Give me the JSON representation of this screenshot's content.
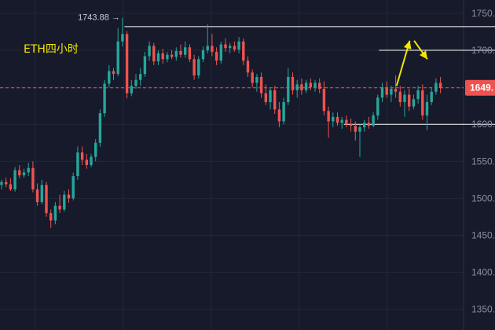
{
  "chart_data": {
    "type": "candlestick",
    "title": "ETH四小时",
    "y_ticks": [
      "1750.00",
      "1700.00",
      "1650.00",
      "1600.00",
      "1550.00",
      "1500.00",
      "1450.00",
      "1400.00",
      "1350.00"
    ],
    "ylim": [
      1322,
      1768
    ],
    "grid": true,
    "last_price": 1649.35,
    "last_price_label": "1649.",
    "high_marker": {
      "value": 1743.88,
      "label": "1743.88 →"
    },
    "levels": [
      {
        "value": 1732,
        "from": 28,
        "to": 1000
      },
      {
        "value": 1700,
        "from": 86,
        "to": 1000
      },
      {
        "value": 1600,
        "from": 78,
        "to": 1000
      }
    ],
    "arrows": [
      {
        "from": [
          90,
          1652
        ],
        "to": [
          93,
          1713
        ]
      },
      {
        "from": [
          94,
          1713
        ],
        "to": [
          97,
          1688
        ]
      }
    ],
    "colors": {
      "up": "#26a69a",
      "down": "#ef5350",
      "background": "#161a2b",
      "grid": "#232838",
      "title": "#f5e600",
      "arrow": "#f5e600",
      "level": "#ffffff",
      "tag": "#ef5350"
    },
    "candles": [
      {
        "o": 1518,
        "h": 1525,
        "l": 1512,
        "c": 1522
      },
      {
        "o": 1522,
        "h": 1528,
        "l": 1515,
        "c": 1519
      },
      {
        "o": 1519,
        "h": 1527,
        "l": 1510,
        "c": 1512
      },
      {
        "o": 1512,
        "h": 1542,
        "l": 1509,
        "c": 1538
      },
      {
        "o": 1538,
        "h": 1545,
        "l": 1527,
        "c": 1531
      },
      {
        "o": 1531,
        "h": 1540,
        "l": 1528,
        "c": 1535
      },
      {
        "o": 1535,
        "h": 1548,
        "l": 1530,
        "c": 1541
      },
      {
        "o": 1541,
        "h": 1550,
        "l": 1508,
        "c": 1512
      },
      {
        "o": 1512,
        "h": 1520,
        "l": 1490,
        "c": 1495
      },
      {
        "o": 1495,
        "h": 1525,
        "l": 1492,
        "c": 1518
      },
      {
        "o": 1518,
        "h": 1522,
        "l": 1475,
        "c": 1480
      },
      {
        "o": 1480,
        "h": 1485,
        "l": 1460,
        "c": 1470
      },
      {
        "o": 1470,
        "h": 1495,
        "l": 1465,
        "c": 1490
      },
      {
        "o": 1490,
        "h": 1505,
        "l": 1480,
        "c": 1485
      },
      {
        "o": 1485,
        "h": 1510,
        "l": 1482,
        "c": 1505
      },
      {
        "o": 1505,
        "h": 1512,
        "l": 1494,
        "c": 1500
      },
      {
        "o": 1500,
        "h": 1535,
        "l": 1497,
        "c": 1530
      },
      {
        "o": 1530,
        "h": 1570,
        "l": 1525,
        "c": 1562
      },
      {
        "o": 1562,
        "h": 1570,
        "l": 1545,
        "c": 1552
      },
      {
        "o": 1552,
        "h": 1560,
        "l": 1540,
        "c": 1545
      },
      {
        "o": 1545,
        "h": 1560,
        "l": 1542,
        "c": 1556
      },
      {
        "o": 1556,
        "h": 1580,
        "l": 1550,
        "c": 1575
      },
      {
        "o": 1575,
        "h": 1620,
        "l": 1570,
        "c": 1615
      },
      {
        "o": 1615,
        "h": 1660,
        "l": 1610,
        "c": 1655
      },
      {
        "o": 1655,
        "h": 1680,
        "l": 1650,
        "c": 1672
      },
      {
        "o": 1672,
        "h": 1676,
        "l": 1660,
        "c": 1668
      },
      {
        "o": 1668,
        "h": 1730,
        "l": 1665,
        "c": 1712
      },
      {
        "o": 1712,
        "h": 1744,
        "l": 1705,
        "c": 1722
      },
      {
        "o": 1722,
        "h": 1726,
        "l": 1635,
        "c": 1642
      },
      {
        "o": 1642,
        "h": 1660,
        "l": 1638,
        "c": 1652
      },
      {
        "o": 1652,
        "h": 1668,
        "l": 1648,
        "c": 1660
      },
      {
        "o": 1660,
        "h": 1676,
        "l": 1652,
        "c": 1668
      },
      {
        "o": 1668,
        "h": 1698,
        "l": 1664,
        "c": 1692
      },
      {
        "o": 1692,
        "h": 1712,
        "l": 1686,
        "c": 1706
      },
      {
        "o": 1706,
        "h": 1710,
        "l": 1680,
        "c": 1685
      },
      {
        "o": 1685,
        "h": 1700,
        "l": 1680,
        "c": 1696
      },
      {
        "o": 1696,
        "h": 1702,
        "l": 1682,
        "c": 1688
      },
      {
        "o": 1688,
        "h": 1698,
        "l": 1684,
        "c": 1694
      },
      {
        "o": 1694,
        "h": 1700,
        "l": 1688,
        "c": 1691
      },
      {
        "o": 1691,
        "h": 1704,
        "l": 1686,
        "c": 1699
      },
      {
        "o": 1699,
        "h": 1708,
        "l": 1690,
        "c": 1694
      },
      {
        "o": 1694,
        "h": 1712,
        "l": 1690,
        "c": 1704
      },
      {
        "o": 1704,
        "h": 1708,
        "l": 1684,
        "c": 1688
      },
      {
        "o": 1688,
        "h": 1694,
        "l": 1660,
        "c": 1666
      },
      {
        "o": 1666,
        "h": 1692,
        "l": 1662,
        "c": 1688
      },
      {
        "o": 1688,
        "h": 1705,
        "l": 1684,
        "c": 1700
      },
      {
        "o": 1700,
        "h": 1735,
        "l": 1696,
        "c": 1706
      },
      {
        "o": 1706,
        "h": 1722,
        "l": 1692,
        "c": 1698
      },
      {
        "o": 1698,
        "h": 1704,
        "l": 1680,
        "c": 1686
      },
      {
        "o": 1686,
        "h": 1712,
        "l": 1682,
        "c": 1708
      },
      {
        "o": 1708,
        "h": 1716,
        "l": 1698,
        "c": 1703
      },
      {
        "o": 1703,
        "h": 1710,
        "l": 1696,
        "c": 1706
      },
      {
        "o": 1706,
        "h": 1712,
        "l": 1698,
        "c": 1701
      },
      {
        "o": 1701,
        "h": 1718,
        "l": 1696,
        "c": 1712
      },
      {
        "o": 1712,
        "h": 1716,
        "l": 1680,
        "c": 1686
      },
      {
        "o": 1686,
        "h": 1692,
        "l": 1664,
        "c": 1670
      },
      {
        "o": 1670,
        "h": 1674,
        "l": 1650,
        "c": 1656
      },
      {
        "o": 1656,
        "h": 1668,
        "l": 1644,
        "c": 1664
      },
      {
        "o": 1664,
        "h": 1670,
        "l": 1636,
        "c": 1642
      },
      {
        "o": 1642,
        "h": 1654,
        "l": 1626,
        "c": 1630
      },
      {
        "o": 1630,
        "h": 1650,
        "l": 1620,
        "c": 1646
      },
      {
        "o": 1646,
        "h": 1652,
        "l": 1614,
        "c": 1620
      },
      {
        "o": 1620,
        "h": 1630,
        "l": 1596,
        "c": 1604
      },
      {
        "o": 1604,
        "h": 1636,
        "l": 1600,
        "c": 1630
      },
      {
        "o": 1630,
        "h": 1676,
        "l": 1626,
        "c": 1664
      },
      {
        "o": 1664,
        "h": 1670,
        "l": 1640,
        "c": 1646
      },
      {
        "o": 1646,
        "h": 1660,
        "l": 1636,
        "c": 1654
      },
      {
        "o": 1654,
        "h": 1662,
        "l": 1640,
        "c": 1646
      },
      {
        "o": 1646,
        "h": 1660,
        "l": 1642,
        "c": 1656
      },
      {
        "o": 1656,
        "h": 1662,
        "l": 1646,
        "c": 1650
      },
      {
        "o": 1650,
        "h": 1660,
        "l": 1644,
        "c": 1656
      },
      {
        "o": 1656,
        "h": 1662,
        "l": 1642,
        "c": 1648
      },
      {
        "o": 1648,
        "h": 1658,
        "l": 1612,
        "c": 1618
      },
      {
        "o": 1618,
        "h": 1624,
        "l": 1582,
        "c": 1604
      },
      {
        "o": 1604,
        "h": 1616,
        "l": 1596,
        "c": 1610
      },
      {
        "o": 1610,
        "h": 1616,
        "l": 1598,
        "c": 1602
      },
      {
        "o": 1602,
        "h": 1610,
        "l": 1594,
        "c": 1606
      },
      {
        "o": 1606,
        "h": 1612,
        "l": 1596,
        "c": 1600
      },
      {
        "o": 1600,
        "h": 1608,
        "l": 1590,
        "c": 1598
      },
      {
        "o": 1598,
        "h": 1604,
        "l": 1578,
        "c": 1590
      },
      {
        "o": 1590,
        "h": 1600,
        "l": 1556,
        "c": 1596
      },
      {
        "o": 1596,
        "h": 1606,
        "l": 1590,
        "c": 1602
      },
      {
        "o": 1602,
        "h": 1610,
        "l": 1594,
        "c": 1598
      },
      {
        "o": 1598,
        "h": 1616,
        "l": 1596,
        "c": 1612
      },
      {
        "o": 1612,
        "h": 1640,
        "l": 1606,
        "c": 1636
      },
      {
        "o": 1636,
        "h": 1656,
        "l": 1630,
        "c": 1650
      },
      {
        "o": 1650,
        "h": 1658,
        "l": 1636,
        "c": 1640
      },
      {
        "o": 1640,
        "h": 1652,
        "l": 1630,
        "c": 1648
      },
      {
        "o": 1648,
        "h": 1666,
        "l": 1636,
        "c": 1644
      },
      {
        "o": 1644,
        "h": 1652,
        "l": 1624,
        "c": 1630
      },
      {
        "o": 1630,
        "h": 1646,
        "l": 1610,
        "c": 1640
      },
      {
        "o": 1640,
        "h": 1648,
        "l": 1618,
        "c": 1624
      },
      {
        "o": 1624,
        "h": 1640,
        "l": 1620,
        "c": 1634
      },
      {
        "o": 1634,
        "h": 1652,
        "l": 1628,
        "c": 1646
      },
      {
        "o": 1646,
        "h": 1654,
        "l": 1606,
        "c": 1612
      },
      {
        "o": 1612,
        "h": 1640,
        "l": 1592,
        "c": 1630
      },
      {
        "o": 1630,
        "h": 1650,
        "l": 1626,
        "c": 1644
      },
      {
        "o": 1644,
        "h": 1662,
        "l": 1640,
        "c": 1656
      },
      {
        "o": 1656,
        "h": 1664,
        "l": 1642,
        "c": 1649
      }
    ]
  }
}
